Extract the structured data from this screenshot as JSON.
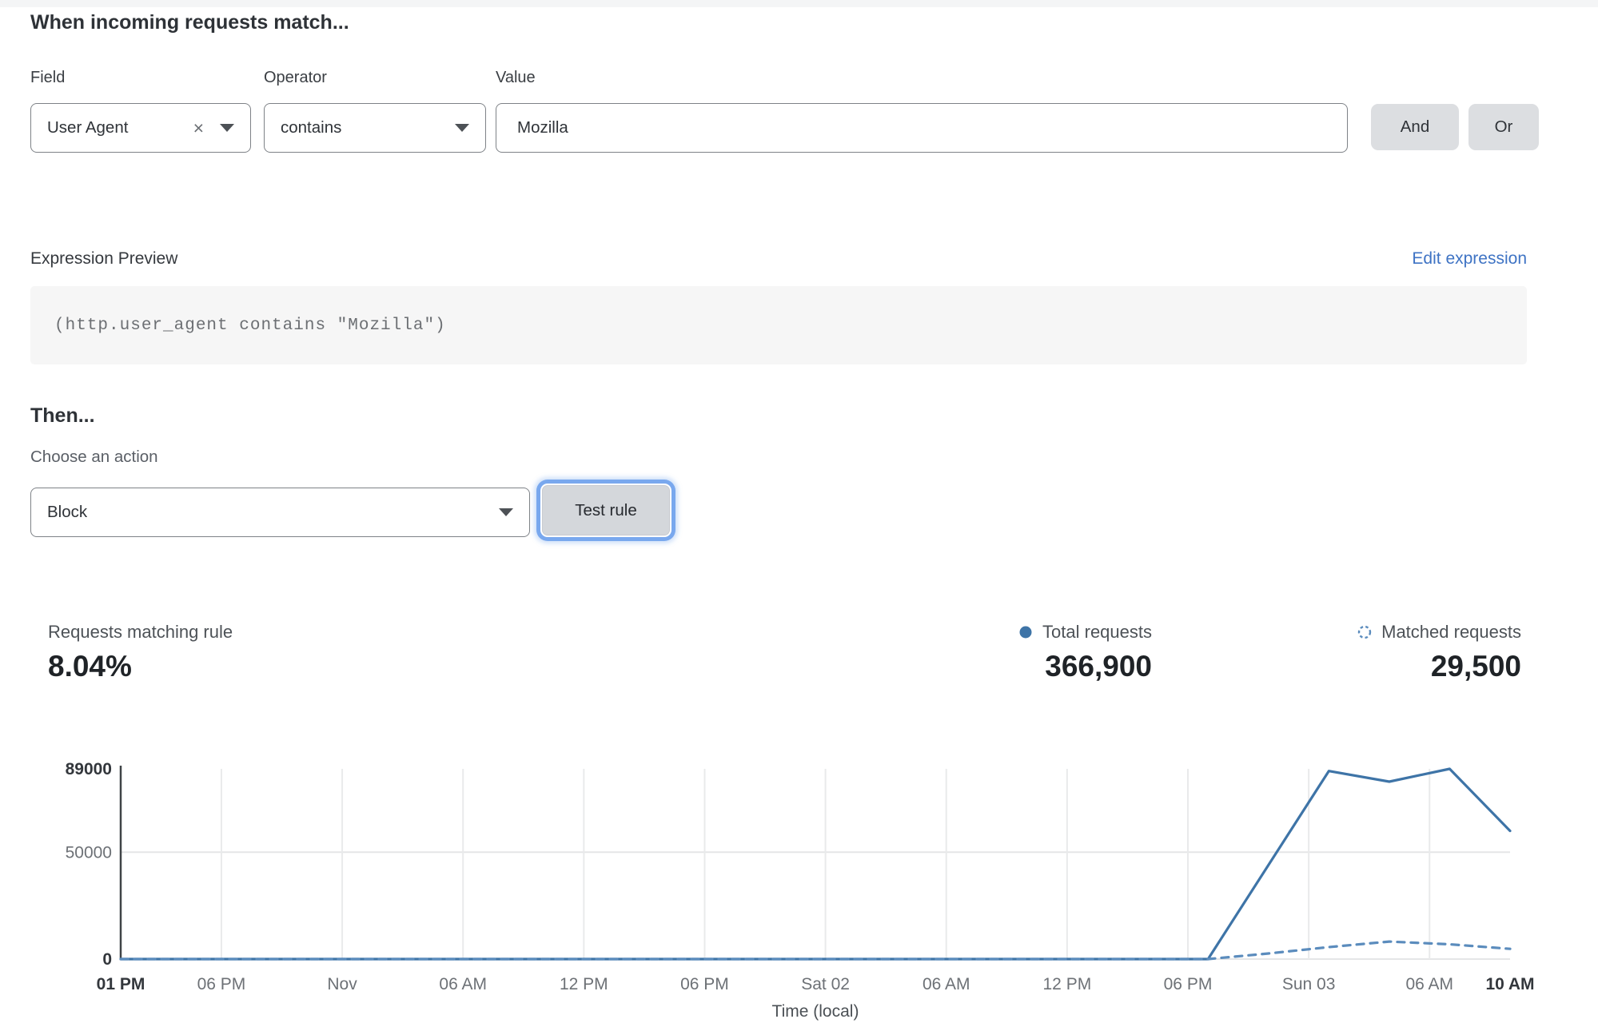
{
  "colors": {
    "accent_blue": "#3e74a7",
    "dashed_blue": "#5b8cbd",
    "link_blue": "#3e73c4",
    "focus_ring_blue": "#79a8ee",
    "connector_button_gray": "#dcdee1",
    "code_background": "#f6f6f6"
  },
  "match_section": {
    "heading": "When incoming requests match...",
    "fields": {
      "field": {
        "label": "Field",
        "value": "User Agent",
        "clear_icon": "×"
      },
      "operator": {
        "label": "Operator",
        "value": "contains"
      },
      "value": {
        "label": "Value",
        "value": "Mozilla"
      }
    },
    "and_label": "And",
    "or_label": "Or"
  },
  "expression": {
    "label": "Expression Preview",
    "edit_link": "Edit expression",
    "code": "(http.user_agent contains \"Mozilla\")"
  },
  "then_section": {
    "heading": "Then...",
    "action_label": "Choose an action",
    "action_value": "Block",
    "test_button": "Test rule"
  },
  "stats": {
    "matching": {
      "label": "Requests matching rule",
      "value": "8.04%"
    },
    "total": {
      "label": "Total requests",
      "value": "366,900"
    },
    "matched": {
      "label": "Matched requests",
      "value": "29,500"
    }
  },
  "chart_data": {
    "type": "line",
    "title": "",
    "xlabel": "Time (local)",
    "ylabel": "",
    "ylim": [
      0,
      89000
    ],
    "grid": true,
    "legend_position": "top-right",
    "yticks": [
      {
        "label": "0",
        "value": 0,
        "bold": true
      },
      {
        "label": "50000",
        "value": 50000,
        "bold": false
      },
      {
        "label": "89000",
        "value": 89000,
        "bold": true
      }
    ],
    "xticks": [
      {
        "label": "01 PM",
        "hour": 0,
        "bold": true
      },
      {
        "label": "06 PM",
        "hour": 5,
        "bold": false
      },
      {
        "label": "Nov",
        "hour": 11,
        "bold": false
      },
      {
        "label": "06 AM",
        "hour": 17,
        "bold": false
      },
      {
        "label": "12 PM",
        "hour": 23,
        "bold": false
      },
      {
        "label": "06 PM",
        "hour": 29,
        "bold": false
      },
      {
        "label": "Sat 02",
        "hour": 35,
        "bold": false
      },
      {
        "label": "06 AM",
        "hour": 41,
        "bold": false
      },
      {
        "label": "12 PM",
        "hour": 47,
        "bold": false
      },
      {
        "label": "06 PM",
        "hour": 53,
        "bold": false
      },
      {
        "label": "Sun 03",
        "hour": 59,
        "bold": false
      },
      {
        "label": "06 AM",
        "hour": 65,
        "bold": false
      },
      {
        "label": "10 AM",
        "hour": 69,
        "bold": true
      }
    ],
    "series": [
      {
        "name": "Total requests",
        "style": "solid",
        "color": "#3e74a7",
        "points": [
          [
            0,
            0
          ],
          [
            54,
            0
          ],
          [
            60,
            88000
          ],
          [
            63,
            83000
          ],
          [
            66,
            89000
          ],
          [
            69,
            60000
          ]
        ]
      },
      {
        "name": "Matched requests",
        "style": "dashed",
        "color": "#5b8cbd",
        "points": [
          [
            0,
            0
          ],
          [
            54,
            0
          ],
          [
            57,
            2600
          ],
          [
            60,
            5600
          ],
          [
            63,
            8200
          ],
          [
            66,
            6900
          ],
          [
            69,
            4800
          ]
        ]
      }
    ]
  }
}
